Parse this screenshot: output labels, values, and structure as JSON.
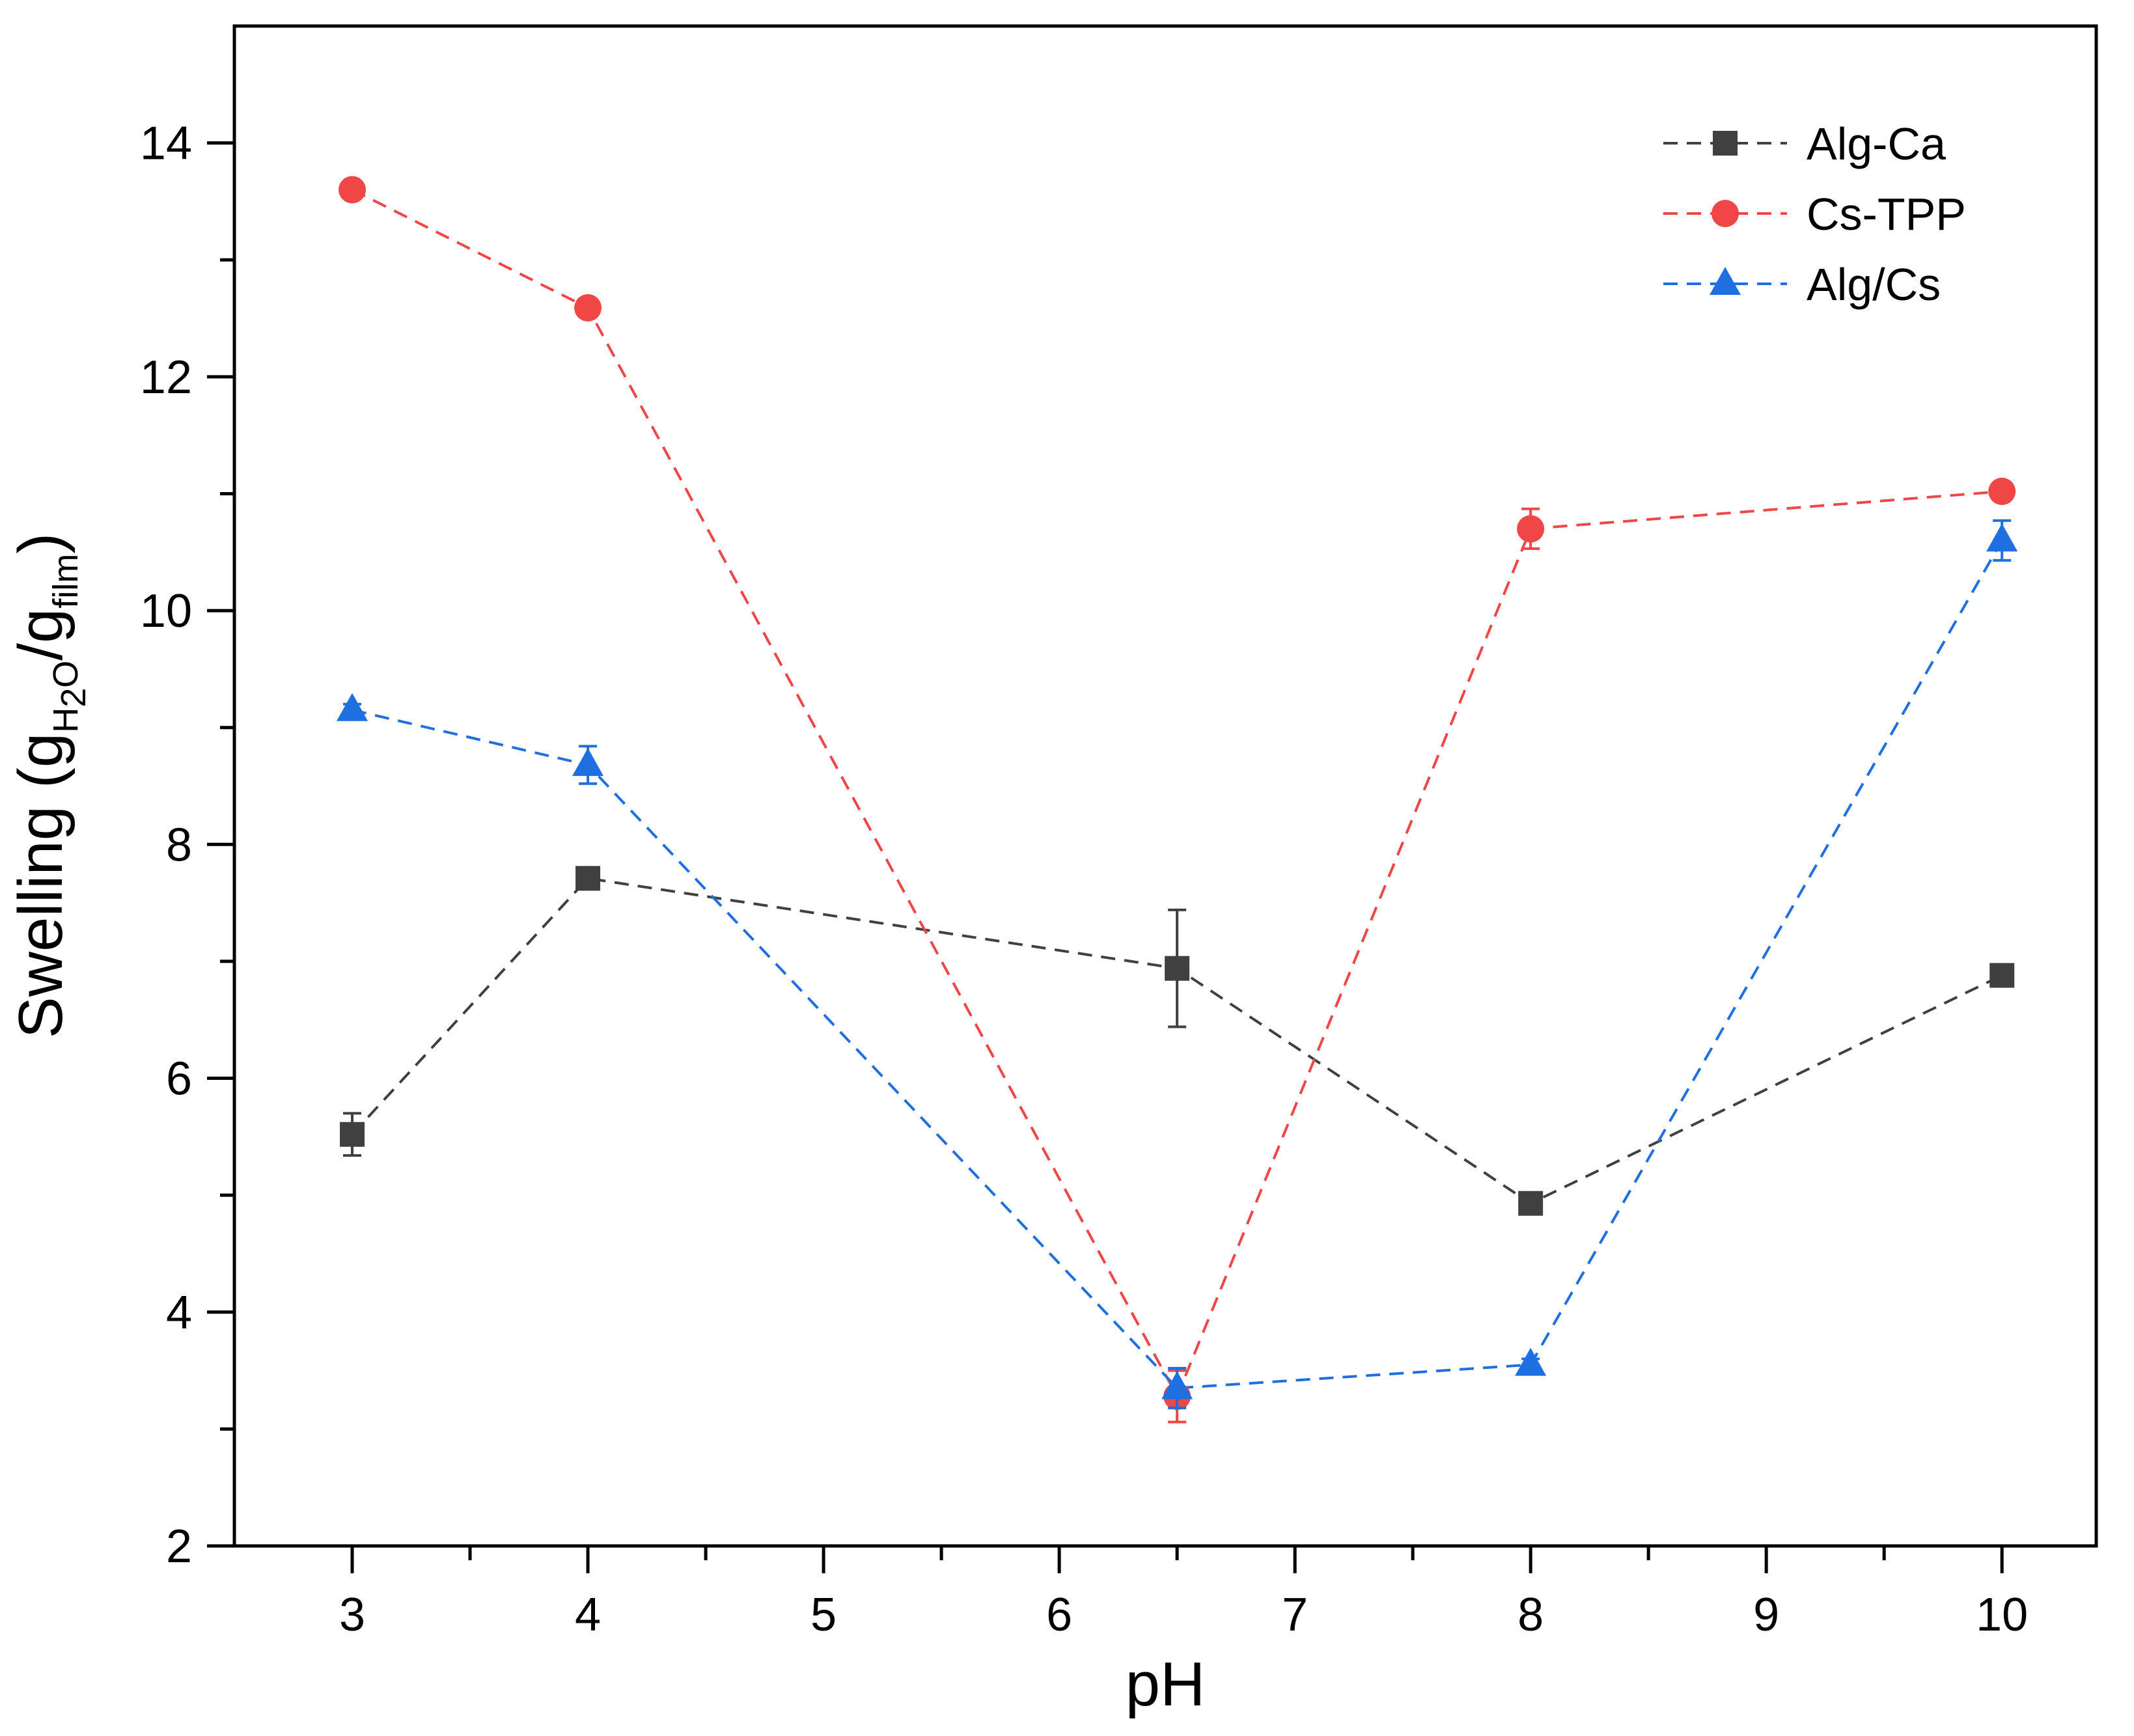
{
  "chart_data": {
    "type": "line",
    "title": "",
    "xlabel": "pH",
    "ylabel": {
      "main": "Swelling (g",
      "sub1": "H",
      "sub1b": "2",
      "sub1c": "O",
      "mid": "/g",
      "sub2": "film",
      "end": ")"
    },
    "xlim": [
      2.5,
      10.4
    ],
    "ylim": [
      2,
      15
    ],
    "xticks": [
      3,
      4,
      5,
      6,
      7,
      8,
      9,
      10
    ],
    "yticks": [
      2,
      4,
      6,
      8,
      10,
      12,
      14
    ],
    "x_minor_ticks": [
      3.5,
      4.5,
      5.5,
      6.5,
      7.5,
      8.5,
      9.5
    ],
    "y_minor_ticks": [
      3,
      5,
      7,
      9,
      11,
      13
    ],
    "grid": false,
    "legend_position": "top-right",
    "series": [
      {
        "name": "Alg-Ca",
        "color": "#404040",
        "marker": "square",
        "x": [
          3,
          4,
          6.5,
          8,
          10
        ],
        "y": [
          5.52,
          7.71,
          6.94,
          4.93,
          6.88
        ],
        "err": [
          0.18,
          0.05,
          0.5,
          0.06,
          0.06
        ]
      },
      {
        "name": "Cs-TPP",
        "color": "#f04646",
        "marker": "circle",
        "x": [
          3,
          4,
          6.5,
          8,
          10
        ],
        "y": [
          13.6,
          12.59,
          3.28,
          10.7,
          11.02
        ],
        "err": [
          0.05,
          0.05,
          0.22,
          0.17,
          0.05
        ]
      },
      {
        "name": "Alg/Cs",
        "color": "#1f6fe0",
        "marker": "triangle",
        "x": [
          3,
          4,
          6.5,
          8,
          10
        ],
        "y": [
          9.15,
          8.68,
          3.35,
          3.55,
          10.6
        ],
        "err": [
          0.05,
          0.16,
          0.17,
          0.05,
          0.17
        ]
      }
    ]
  }
}
